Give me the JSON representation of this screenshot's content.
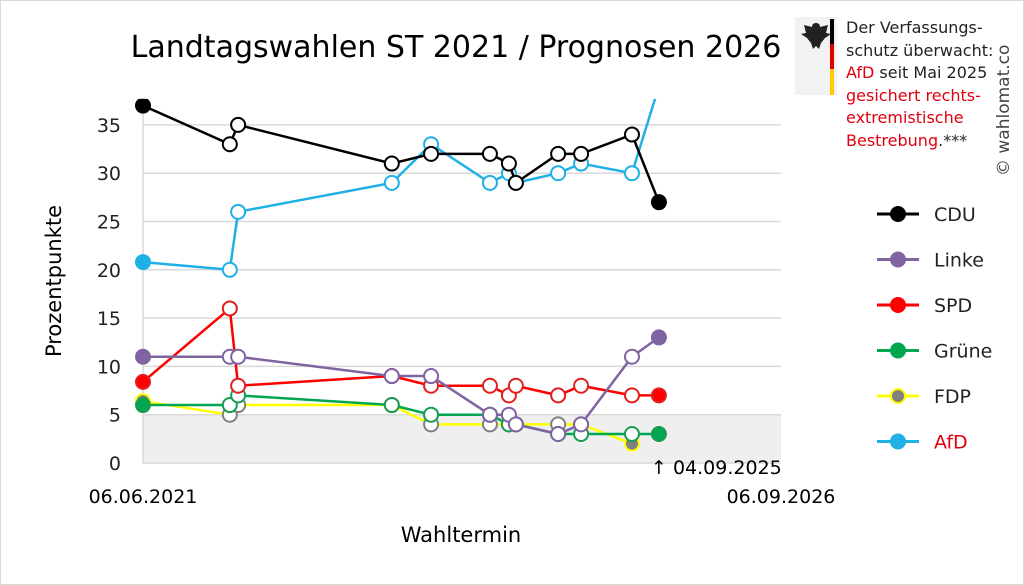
{
  "chart_data": {
    "type": "line",
    "title": "Landtagswahlen ST 2021 / Prognosen 2026",
    "xlabel": "Wahltermin",
    "ylabel": "Prozentpunkte",
    "ylim": [
      0,
      37.7
    ],
    "yticks": [
      0,
      5,
      10,
      15,
      20,
      25,
      30,
      35
    ],
    "xlim": [
      "2021-06-06",
      "2026-09-06"
    ],
    "xtick_labels": [
      "06.06.2021",
      "06.09.2026"
    ],
    "annotation": "↑ 04.09.2025",
    "threshold_band": [
      0,
      5
    ],
    "x": [
      "2021-06-06",
      "2022-02-22",
      "2022-03-19",
      "2023-06-24",
      "2023-10-20",
      "2024-04-14",
      "2024-06-10",
      "2024-07-01",
      "2024-11-05",
      "2025-01-13",
      "2025-06-15",
      "2025-09-04"
    ],
    "series": [
      {
        "name": "CDU",
        "color": "#000000",
        "marker": "#000000",
        "values": [
          37,
          33,
          35,
          31,
          32,
          32,
          31,
          29,
          32,
          32,
          34,
          27
        ]
      },
      {
        "name": "Linke",
        "color": "#8064a2",
        "marker": "#8064a2",
        "values": [
          11,
          11,
          11,
          9,
          9,
          5,
          5,
          4,
          3,
          4,
          11,
          13
        ]
      },
      {
        "name": "SPD",
        "color": "#ff0000",
        "marker": "#e02020",
        "values": [
          8.4,
          16,
          8,
          9,
          8,
          8,
          7,
          8,
          7,
          8,
          7,
          7
        ]
      },
      {
        "name": "Grüne",
        "color": "#00a650",
        "marker": "#1a9a50",
        "values": [
          6,
          6,
          7,
          6,
          5,
          5,
          4,
          4,
          3,
          3,
          3,
          3
        ]
      },
      {
        "name": "FDP",
        "color": "#ffff00",
        "marker": "#808080",
        "values": [
          6.4,
          5,
          6,
          6,
          4,
          4,
          4,
          4,
          4,
          4,
          2,
          null
        ]
      },
      {
        "name": "AfD",
        "color": "#1fb0e6",
        "marker": "#1fb0e6",
        "values": [
          20.8,
          20,
          26,
          29,
          33,
          29,
          30,
          29,
          30,
          31,
          30,
          39
        ]
      }
    ]
  },
  "note": {
    "line1": "Der Verfassungs-",
    "line2": "schutz überwacht:",
    "afd": "AfD",
    "line3": " seit Mai 2025",
    "line4": "gesichert rechts-",
    "line5": "extremistische",
    "line6": "Bestrebung",
    ".": ".",
    "stars": "***"
  },
  "copyright": "© wahlomat.co"
}
